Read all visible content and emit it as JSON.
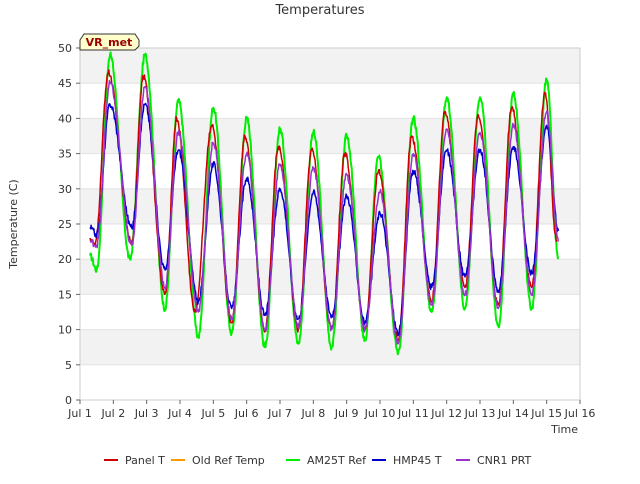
{
  "chart_data": {
    "type": "line",
    "title": "Temperatures",
    "xlabel": "Time",
    "ylabel": "Temperature (C)",
    "annotation": "VR_met",
    "x_ticks": [
      "Jul 1",
      "Jul 2",
      "Jul 3",
      "Jul 4",
      "Jul 5",
      "Jul 6",
      "Jul 7",
      "Jul 8",
      "Jul 9",
      "Jul 10",
      "Jul 11",
      "Jul 12",
      "Jul 13",
      "Jul 14",
      "Jul 15",
      "Jul 16"
    ],
    "x_tick_days": [
      1,
      2,
      3,
      4,
      5,
      6,
      7,
      8,
      9,
      10,
      11,
      12,
      13,
      14,
      15,
      16
    ],
    "xlim": [
      1,
      16
    ],
    "y_ticks": [
      0,
      5,
      10,
      15,
      20,
      25,
      30,
      35,
      40,
      45,
      50
    ],
    "ylim": [
      0,
      50
    ],
    "grid": "horizontal bands",
    "legend_position": "bottom",
    "series": [
      {
        "name": "Panel T",
        "color": "#cc0000",
        "daily_extremes": [
          {
            "day": 1.3,
            "temp": 23
          },
          {
            "day": 1.45,
            "temp": 22
          },
          {
            "day": 1.85,
            "temp": 46.5
          },
          {
            "day": 2.55,
            "temp": 22.5
          },
          {
            "day": 2.9,
            "temp": 46
          },
          {
            "day": 3.55,
            "temp": 15
          },
          {
            "day": 3.9,
            "temp": 40
          },
          {
            "day": 4.45,
            "temp": 12.5
          },
          {
            "day": 4.95,
            "temp": 39
          },
          {
            "day": 5.55,
            "temp": 11
          },
          {
            "day": 5.95,
            "temp": 37.5
          },
          {
            "day": 6.55,
            "temp": 10
          },
          {
            "day": 6.95,
            "temp": 36
          },
          {
            "day": 7.55,
            "temp": 10
          },
          {
            "day": 7.95,
            "temp": 35.5
          },
          {
            "day": 8.55,
            "temp": 10
          },
          {
            "day": 8.95,
            "temp": 35
          },
          {
            "day": 9.55,
            "temp": 10
          },
          {
            "day": 9.95,
            "temp": 32.5
          },
          {
            "day": 10.55,
            "temp": 8.5
          },
          {
            "day": 10.95,
            "temp": 37.5
          },
          {
            "day": 11.55,
            "temp": 14
          },
          {
            "day": 11.95,
            "temp": 41
          },
          {
            "day": 12.55,
            "temp": 16
          },
          {
            "day": 12.95,
            "temp": 40.5
          },
          {
            "day": 13.55,
            "temp": 13.5
          },
          {
            "day": 13.95,
            "temp": 41.5
          },
          {
            "day": 14.55,
            "temp": 16
          },
          {
            "day": 14.95,
            "temp": 43.5
          },
          {
            "day": 15.3,
            "temp": 22.5
          }
        ]
      },
      {
        "name": "Old Ref Temp",
        "color": "#ff9900",
        "daily_extremes": []
      },
      {
        "name": "AM25T Ref",
        "color": "#00ee00",
        "daily_extremes": [
          {
            "day": 1.3,
            "temp": 20.5
          },
          {
            "day": 1.5,
            "temp": 18.5
          },
          {
            "day": 1.9,
            "temp": 49
          },
          {
            "day": 2.5,
            "temp": 20
          },
          {
            "day": 2.95,
            "temp": 49
          },
          {
            "day": 3.55,
            "temp": 13
          },
          {
            "day": 3.95,
            "temp": 42.5
          },
          {
            "day": 4.55,
            "temp": 9
          },
          {
            "day": 5.0,
            "temp": 41.5
          },
          {
            "day": 5.55,
            "temp": 9.5
          },
          {
            "day": 6.0,
            "temp": 40
          },
          {
            "day": 6.55,
            "temp": 7.5
          },
          {
            "day": 7.0,
            "temp": 38.5
          },
          {
            "day": 7.55,
            "temp": 8
          },
          {
            "day": 8.0,
            "temp": 38
          },
          {
            "day": 8.55,
            "temp": 7.5
          },
          {
            "day": 9.0,
            "temp": 37.5
          },
          {
            "day": 9.55,
            "temp": 8.5
          },
          {
            "day": 9.95,
            "temp": 34.5
          },
          {
            "day": 10.55,
            "temp": 6.8
          },
          {
            "day": 11.0,
            "temp": 40
          },
          {
            "day": 11.55,
            "temp": 12.5
          },
          {
            "day": 12.0,
            "temp": 43
          },
          {
            "day": 12.55,
            "temp": 13
          },
          {
            "day": 13.0,
            "temp": 43
          },
          {
            "day": 13.55,
            "temp": 10.5
          },
          {
            "day": 14.0,
            "temp": 43.5
          },
          {
            "day": 14.55,
            "temp": 13
          },
          {
            "day": 15.0,
            "temp": 45.5
          },
          {
            "day": 15.35,
            "temp": 20
          }
        ]
      },
      {
        "name": "HMP45 T",
        "color": "#0000cc",
        "daily_extremes": [
          {
            "day": 1.3,
            "temp": 24.5
          },
          {
            "day": 1.5,
            "temp": 23.5
          },
          {
            "day": 1.9,
            "temp": 42
          },
          {
            "day": 2.55,
            "temp": 24.5
          },
          {
            "day": 2.95,
            "temp": 42
          },
          {
            "day": 3.55,
            "temp": 18.5
          },
          {
            "day": 3.95,
            "temp": 35.5
          },
          {
            "day": 4.55,
            "temp": 14
          },
          {
            "day": 5.0,
            "temp": 33.5
          },
          {
            "day": 5.55,
            "temp": 13
          },
          {
            "day": 6.0,
            "temp": 31.5
          },
          {
            "day": 6.55,
            "temp": 12
          },
          {
            "day": 7.0,
            "temp": 30
          },
          {
            "day": 7.55,
            "temp": 11.5
          },
          {
            "day": 8.0,
            "temp": 29.5
          },
          {
            "day": 8.55,
            "temp": 12
          },
          {
            "day": 9.0,
            "temp": 29
          },
          {
            "day": 9.55,
            "temp": 11
          },
          {
            "day": 10.0,
            "temp": 26.5
          },
          {
            "day": 10.55,
            "temp": 9.5
          },
          {
            "day": 11.0,
            "temp": 32.5
          },
          {
            "day": 11.55,
            "temp": 16
          },
          {
            "day": 12.0,
            "temp": 35.5
          },
          {
            "day": 12.55,
            "temp": 17.5
          },
          {
            "day": 13.0,
            "temp": 35.5
          },
          {
            "day": 13.55,
            "temp": 15.5
          },
          {
            "day": 14.0,
            "temp": 36
          },
          {
            "day": 14.55,
            "temp": 18
          },
          {
            "day": 15.0,
            "temp": 39
          },
          {
            "day": 15.35,
            "temp": 24
          }
        ]
      },
      {
        "name": "CNR1 PRT",
        "color": "#9933cc",
        "daily_extremes": [
          {
            "day": 1.3,
            "temp": 22.5
          },
          {
            "day": 1.5,
            "temp": 22
          },
          {
            "day": 1.9,
            "temp": 45
          },
          {
            "day": 2.55,
            "temp": 22
          },
          {
            "day": 2.95,
            "temp": 44.5
          },
          {
            "day": 3.55,
            "temp": 16
          },
          {
            "day": 3.95,
            "temp": 38
          },
          {
            "day": 4.55,
            "temp": 12.5
          },
          {
            "day": 5.0,
            "temp": 36.5
          },
          {
            "day": 5.55,
            "temp": 11.5
          },
          {
            "day": 6.0,
            "temp": 35
          },
          {
            "day": 6.55,
            "temp": 10
          },
          {
            "day": 7.0,
            "temp": 33.5
          },
          {
            "day": 7.55,
            "temp": 10.5
          },
          {
            "day": 8.0,
            "temp": 33
          },
          {
            "day": 8.55,
            "temp": 10
          },
          {
            "day": 9.0,
            "temp": 32
          },
          {
            "day": 9.55,
            "temp": 10
          },
          {
            "day": 10.0,
            "temp": 29.5
          },
          {
            "day": 10.55,
            "temp": 8
          },
          {
            "day": 11.0,
            "temp": 35
          },
          {
            "day": 11.55,
            "temp": 13.5
          },
          {
            "day": 12.0,
            "temp": 38.5
          },
          {
            "day": 12.55,
            "temp": 15
          },
          {
            "day": 13.0,
            "temp": 38
          },
          {
            "day": 13.55,
            "temp": 13
          },
          {
            "day": 14.0,
            "temp": 39
          },
          {
            "day": 14.55,
            "temp": 15
          },
          {
            "day": 15.0,
            "temp": 41
          },
          {
            "day": 15.35,
            "temp": 22.5
          }
        ]
      }
    ]
  }
}
